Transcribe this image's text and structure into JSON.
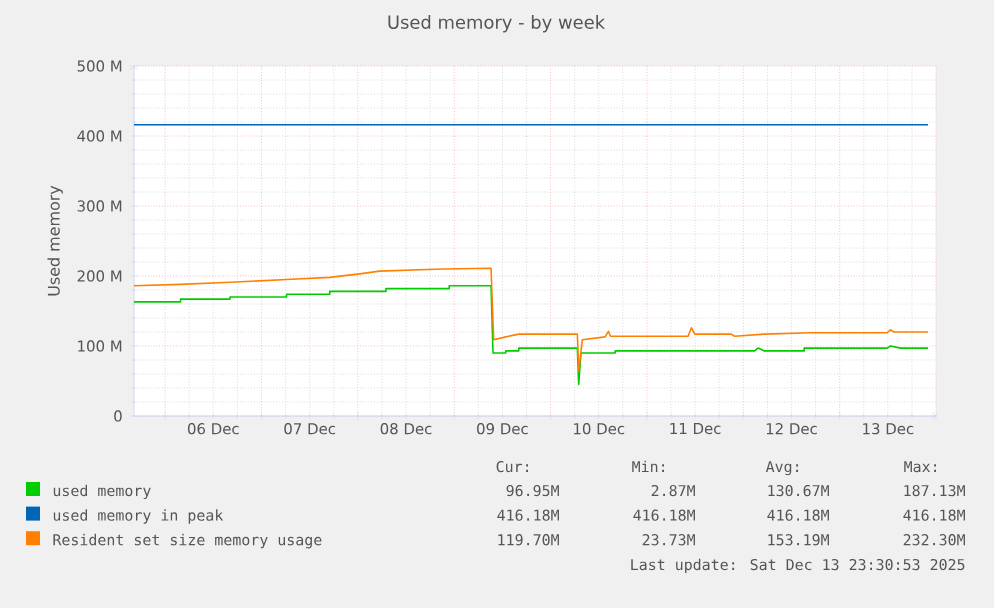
{
  "chart_data": {
    "type": "line",
    "title": "Used memory - by week",
    "ylabel": "Used memory",
    "xlim": [
      "2025-12-05T16:15",
      "2025-12-14T00:00"
    ],
    "ylim": [
      0,
      500
    ],
    "xticks": [
      {
        "value": "2025-12-06T00:00",
        "label": null
      },
      {
        "value": "2025-12-07T00:00",
        "label": null
      },
      {
        "value": "2025-12-08T00:00",
        "label": null
      },
      {
        "value": "2025-12-09T00:00",
        "label": null
      },
      {
        "value": "2025-12-10T00:00",
        "label": null
      },
      {
        "value": "2025-12-11T00:00",
        "label": null
      },
      {
        "value": "2025-12-12T00:00",
        "label": null
      },
      {
        "value": "2025-12-13T00:00",
        "label": null
      },
      {
        "value": "2025-12-14T00:00",
        "label": null
      },
      {
        "value": "2025-12-06T12:00",
        "label": "06 Dec"
      },
      {
        "value": "2025-12-07T12:00",
        "label": "07 Dec"
      },
      {
        "value": "2025-12-08T12:00",
        "label": "08 Dec"
      },
      {
        "value": "2025-12-09T12:00",
        "label": "09 Dec"
      },
      {
        "value": "2025-12-10T12:00",
        "label": "10 Dec"
      },
      {
        "value": "2025-12-11T12:00",
        "label": "11 Dec"
      },
      {
        "value": "2025-12-12T12:00",
        "label": "12 Dec"
      },
      {
        "value": "2025-12-13T12:00",
        "label": "13 Dec"
      }
    ],
    "yticks": [
      0,
      {
        "value": 100,
        "label": "100 M"
      },
      {
        "value": 200,
        "label": "200 M"
      },
      {
        "value": 300,
        "label": "300 M"
      },
      {
        "value": 400,
        "label": "400 M"
      },
      {
        "value": 500,
        "label": "500 M"
      }
    ],
    "grid": true,
    "legend": "bottom",
    "series": [
      {
        "name": "used memory",
        "color": "#00cc00",
        "x": [
          "2025-12-05T16:15",
          "2025-12-06T03:50",
          "2025-12-06T03:50",
          "2025-12-06T16:10",
          "2025-12-06T16:10",
          "2025-12-07T06:15",
          "2025-12-07T06:15",
          "2025-12-07T17:00",
          "2025-12-07T17:00",
          "2025-12-08T07:00",
          "2025-12-08T07:00",
          "2025-12-08T22:45",
          "2025-12-08T22:45",
          "2025-12-09T09:10",
          "2025-12-09T09:40",
          "2025-12-09T12:50",
          "2025-12-09T12:50",
          "2025-12-09T16:05",
          "2025-12-09T16:05",
          "2025-12-10T06:40",
          "2025-12-10T07:00",
          "2025-12-10T07:35",
          "2025-12-10T16:05",
          "2025-12-10T16:05",
          "2025-12-12T02:50",
          "2025-12-12T03:40",
          "2025-12-12T05:15",
          "2025-12-12T15:10",
          "2025-12-12T15:10",
          "2025-12-13T11:50",
          "2025-12-13T12:40",
          "2025-12-13T15:10",
          "2025-12-13T22:00"
        ],
        "values": [
          163,
          163,
          167,
          167,
          170,
          170,
          174,
          174,
          178,
          178,
          182,
          182,
          186,
          186,
          90,
          90,
          93,
          93,
          97,
          97,
          45,
          90,
          90,
          93,
          93,
          97,
          93,
          93,
          97,
          97,
          100,
          97,
          97
        ]
      },
      {
        "name": "used memory in peak",
        "color": "#0066b3",
        "x": [
          "2025-12-05T16:15",
          "2025-12-13T22:00"
        ],
        "values": [
          416,
          416
        ]
      },
      {
        "name": "Resident set size memory usage",
        "color": "#ff8000",
        "x": [
          "2025-12-05T16:15",
          "2025-12-06T03:50",
          "2025-12-06T16:10",
          "2025-12-07T06:15",
          "2025-12-07T17:00",
          "2025-12-08T00:25",
          "2025-12-08T05:25",
          "2025-12-08T21:05",
          "2025-12-09T09:10",
          "2025-12-09T09:50",
          "2025-12-09T12:50",
          "2025-12-09T16:05",
          "2025-12-10T06:40",
          "2025-12-10T07:00",
          "2025-12-10T07:55",
          "2025-12-10T13:35",
          "2025-12-10T14:25",
          "2025-12-10T14:55",
          "2025-12-11T10:15",
          "2025-12-11T11:05",
          "2025-12-11T11:55",
          "2025-12-11T21:00",
          "2025-12-11T21:50",
          "2025-12-12T05:15",
          "2025-12-12T16:50",
          "2025-12-13T11:50",
          "2025-12-13T12:40",
          "2025-12-13T13:30",
          "2025-12-13T22:00"
        ],
        "values": [
          186,
          188,
          191,
          195,
          198,
          203,
          207,
          210,
          211,
          109,
          113,
          117,
          117,
          64,
          109,
          113,
          121,
          114,
          114,
          126,
          117,
          117,
          114,
          117,
          119,
          119,
          123,
          120,
          120
        ]
      }
    ],
    "annotations": [
      "Cur:",
      "Min:",
      "Avg:",
      "Max:",
      "96.95M",
      "2.87M",
      "130.67M",
      "187.13M",
      "416.18M",
      "416.18M",
      "416.18M",
      "416.18M",
      "119.70M",
      "23.73M",
      "153.19M",
      "232.30M",
      "Last update: Sat Dec 13 23:30:53 2025"
    ]
  }
}
